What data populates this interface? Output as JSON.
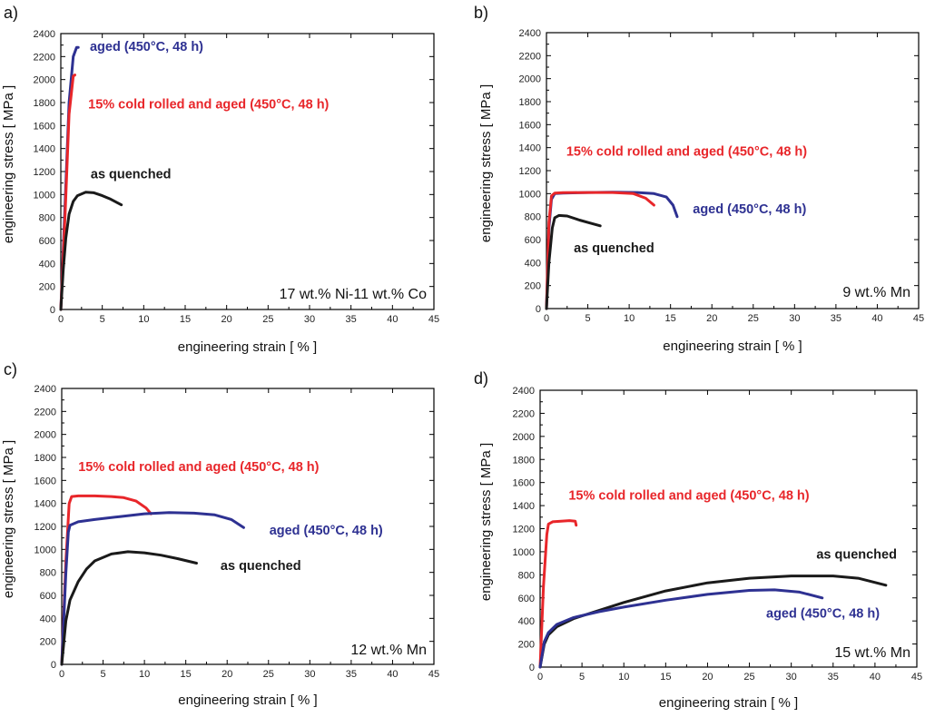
{
  "figure": {
    "panels": [
      "a)",
      "b)",
      "c)",
      "d)"
    ]
  },
  "colors": {
    "aged": "#2e3192",
    "cold_rolled": "#e8262a",
    "as_quenched": "#1a1a1a"
  },
  "chart_data": [
    {
      "type": "line",
      "panel": "a)",
      "alloy_label": "17 wt.% Ni-11 wt.% Co",
      "xlabel": "engineering strain [ % ]",
      "ylabel": "engineering stress [ MPa ]",
      "xlim": [
        0,
        45
      ],
      "ylim": [
        0,
        2400
      ],
      "xticks": [
        0,
        5,
        10,
        15,
        20,
        25,
        30,
        35,
        40,
        45
      ],
      "yticks": [
        0,
        200,
        400,
        600,
        800,
        1000,
        1200,
        1400,
        1600,
        1800,
        2000,
        2200,
        2400
      ],
      "series": [
        {
          "name": "aged (450°C, 48 h)",
          "key": "aged",
          "x": [
            0,
            0.5,
            1.0,
            1.5,
            1.9,
            2.1
          ],
          "y": [
            0,
            900,
            1800,
            2200,
            2280,
            2280
          ]
        },
        {
          "name": "15% cold rolled and aged (450°C, 48 h)",
          "key": "cold_rolled",
          "x": [
            0,
            0.5,
            1.0,
            1.5,
            1.7
          ],
          "y": [
            0,
            800,
            1700,
            2030,
            2040
          ]
        },
        {
          "name": "as quenched",
          "key": "as_quenched",
          "x": [
            0,
            0.3,
            0.6,
            1.0,
            1.5,
            2.0,
            3.0,
            4.0,
            5.0,
            6.0,
            7.3
          ],
          "y": [
            0,
            350,
            620,
            830,
            940,
            990,
            1020,
            1015,
            990,
            960,
            910
          ]
        }
      ],
      "annotations": [
        {
          "text": "aged (450°C, 48 h)",
          "key": "aged",
          "x": 3.5,
          "y": 2250
        },
        {
          "text": "15% cold rolled and aged (450°C, 48 h)",
          "key": "cold_rolled",
          "x": 3.3,
          "y": 1750
        },
        {
          "text": "as quenched",
          "key": "as_quenched",
          "x": 3.6,
          "y": 1140
        }
      ]
    },
    {
      "type": "line",
      "panel": "b)",
      "alloy_label": "9 wt.% Mn",
      "xlabel": "engineering strain [ % ]",
      "ylabel": "engineering stress [ MPa ]",
      "xlim": [
        0,
        45
      ],
      "ylim": [
        0,
        2400
      ],
      "xticks": [
        0,
        5,
        10,
        15,
        20,
        25,
        30,
        35,
        40,
        45
      ],
      "yticks": [
        0,
        200,
        400,
        600,
        800,
        1000,
        1200,
        1400,
        1600,
        1800,
        2000,
        2200,
        2400
      ],
      "series": [
        {
          "name": "aged (450°C, 48 h)",
          "key": "aged",
          "x": [
            0,
            0.3,
            0.6,
            1.0,
            2.0,
            5.0,
            8.0,
            11.0,
            13.0,
            14.5,
            15.3,
            15.8
          ],
          "y": [
            0,
            700,
            950,
            1000,
            1005,
            1010,
            1012,
            1010,
            1000,
            970,
            900,
            800
          ]
        },
        {
          "name": "15% cold rolled and aged (450°C, 48 h)",
          "key": "cold_rolled",
          "x": [
            0,
            0.3,
            0.6,
            1.0,
            2.0,
            5.0,
            8.0,
            10.5,
            12.0,
            13.0
          ],
          "y": [
            0,
            750,
            980,
            1005,
            1008,
            1010,
            1010,
            1000,
            960,
            900
          ]
        },
        {
          "name": "as quenched",
          "key": "as_quenched",
          "x": [
            0,
            0.3,
            0.7,
            1.0,
            1.5,
            2.5,
            4.0,
            5.5,
            6.5
          ],
          "y": [
            0,
            400,
            700,
            790,
            810,
            805,
            770,
            740,
            720
          ]
        }
      ],
      "annotations": [
        {
          "text": "15% cold rolled and aged (450°C, 48 h)",
          "key": "cold_rolled",
          "x": 2.4,
          "y": 1330
        },
        {
          "text": "aged (450°C, 48 h)",
          "key": "aged",
          "x": 17.7,
          "y": 830
        },
        {
          "text": "as quenched",
          "key": "as_quenched",
          "x": 3.3,
          "y": 490
        }
      ]
    },
    {
      "type": "line",
      "panel": "c)",
      "alloy_label": "12 wt.% Mn",
      "xlabel": "engineering strain [ % ]",
      "ylabel": "engineering stress [ MPa ]",
      "xlim": [
        0,
        45
      ],
      "ylim": [
        0,
        2400
      ],
      "xticks": [
        0,
        5,
        10,
        15,
        20,
        25,
        30,
        35,
        40,
        45
      ],
      "yticks": [
        0,
        200,
        400,
        600,
        800,
        1000,
        1200,
        1400,
        1600,
        1800,
        2000,
        2200,
        2400
      ],
      "series": [
        {
          "name": "15% cold rolled and aged (450°C, 48 h)",
          "key": "cold_rolled",
          "x": [
            0,
            0.5,
            0.9,
            1.2,
            2.0,
            4.0,
            6.0,
            7.5,
            9.0,
            10.2,
            10.8
          ],
          "y": [
            0,
            900,
            1400,
            1460,
            1465,
            1465,
            1460,
            1450,
            1420,
            1360,
            1310
          ]
        },
        {
          "name": "aged (450°C, 48 h)",
          "key": "aged",
          "x": [
            0,
            0.5,
            0.8,
            1.0,
            2.0,
            4.0,
            7.0,
            10.0,
            13.0,
            16.0,
            18.5,
            20.5,
            22.0
          ],
          "y": [
            0,
            800,
            1150,
            1210,
            1240,
            1260,
            1285,
            1310,
            1320,
            1315,
            1300,
            1260,
            1190
          ]
        },
        {
          "name": "as quenched",
          "key": "as_quenched",
          "x": [
            0,
            0.5,
            1.0,
            2.0,
            3.0,
            4.0,
            6.0,
            8.0,
            10.0,
            12.0,
            14.0,
            16.3
          ],
          "y": [
            0,
            380,
            560,
            720,
            830,
            900,
            960,
            980,
            970,
            950,
            920,
            880
          ]
        }
      ],
      "annotations": [
        {
          "text": "15% cold rolled and aged (450°C, 48 h)",
          "key": "cold_rolled",
          "x": 2.0,
          "y": 1680
        },
        {
          "text": "aged (450°C, 48 h)",
          "key": "aged",
          "x": 25.1,
          "y": 1130
        },
        {
          "text": "as quenched",
          "key": "as_quenched",
          "x": 19.2,
          "y": 820
        }
      ]
    },
    {
      "type": "line",
      "panel": "d)",
      "alloy_label": "15 wt.% Mn",
      "xlabel": "engineering strain [ % ]",
      "ylabel": "engineering stress [ MPa ]",
      "xlim": [
        0,
        45
      ],
      "ylim": [
        0,
        2400
      ],
      "xticks": [
        0,
        5,
        10,
        15,
        20,
        25,
        30,
        35,
        40,
        45
      ],
      "yticks": [
        0,
        200,
        400,
        600,
        800,
        1000,
        1200,
        1400,
        1600,
        1800,
        2000,
        2200,
        2400
      ],
      "series": [
        {
          "name": "15% cold rolled and aged (450°C, 48 h)",
          "key": "cold_rolled",
          "x": [
            0,
            0.4,
            0.8,
            1.0,
            1.5,
            2.5,
            3.5,
            4.2,
            4.3
          ],
          "y": [
            0,
            700,
            1150,
            1240,
            1260,
            1265,
            1270,
            1265,
            1230
          ]
        },
        {
          "name": "as quenched",
          "key": "as_quenched",
          "x": [
            0,
            0.5,
            1.0,
            2.0,
            4.0,
            7.0,
            10.0,
            15.0,
            20.0,
            25.0,
            30.0,
            35.0,
            38.0,
            41.3
          ],
          "y": [
            0,
            200,
            280,
            350,
            420,
            490,
            560,
            660,
            730,
            770,
            790,
            790,
            770,
            710
          ]
        },
        {
          "name": "aged (450°C, 48 h)",
          "key": "aged",
          "x": [
            0,
            0.5,
            1.0,
            2.0,
            4.0,
            7.0,
            10.0,
            15.0,
            20.0,
            25.0,
            28.0,
            31.0,
            33.7
          ],
          "y": [
            0,
            220,
            300,
            370,
            430,
            480,
            520,
            580,
            630,
            665,
            670,
            650,
            600
          ]
        }
      ],
      "annotations": [
        {
          "text": "15% cold rolled and aged (450°C, 48 h)",
          "key": "cold_rolled",
          "x": 3.4,
          "y": 1450
        },
        {
          "text": "as quenched",
          "key": "as_quenched",
          "x": 33.0,
          "y": 940
        },
        {
          "text": "aged (450°C, 48 h)",
          "key": "aged",
          "x": 27.0,
          "y": 430
        }
      ]
    }
  ]
}
